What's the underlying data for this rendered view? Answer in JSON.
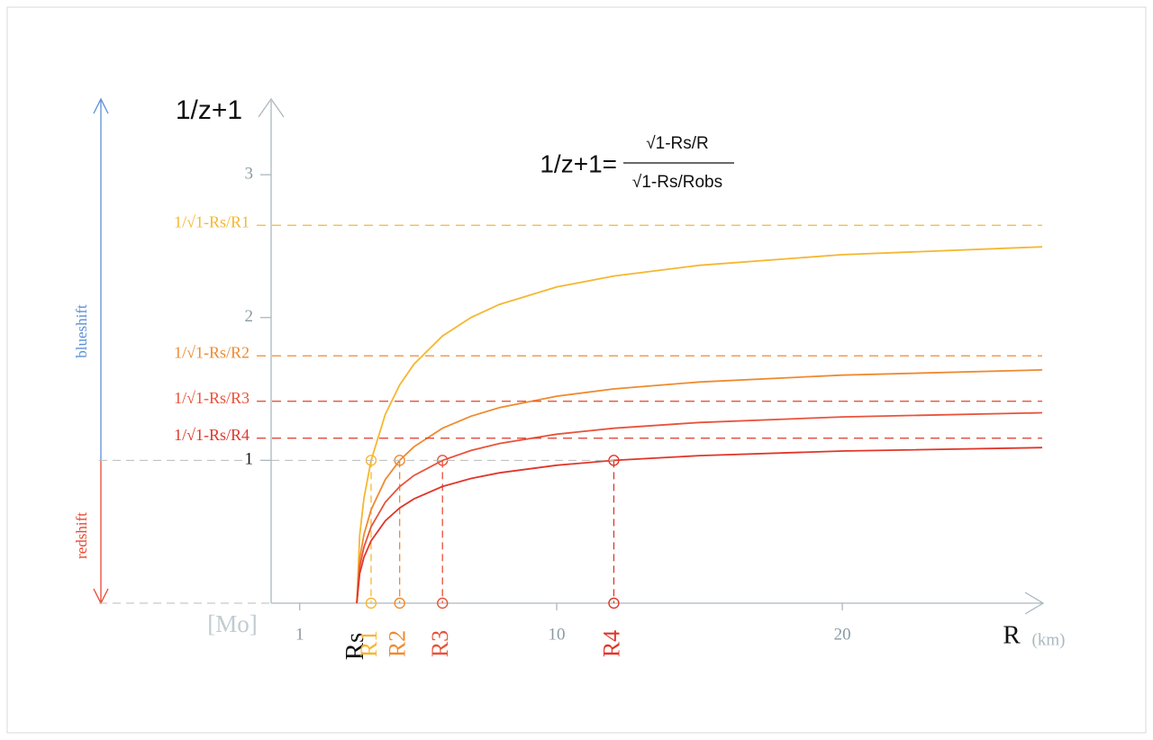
{
  "chart_data": {
    "type": "line",
    "y_label": "1/z+1",
    "formula": {
      "lhs": "1/z+1=",
      "numerator": "√1-Rs/R",
      "denominator": "√1-Rs/Robs"
    },
    "x_label": "R",
    "x_unit": "(km)",
    "x_prefix": "[Mo]",
    "shift_labels": {
      "blue": "blueshift",
      "red": "redshift"
    },
    "rs": {
      "label": "Rs",
      "value": 3
    },
    "xlim": [
      0,
      27
    ],
    "ylim": [
      0,
      3.53
    ],
    "xticks": [
      1,
      10,
      20
    ],
    "yticks": [
      1,
      2,
      3
    ],
    "x": [
      3,
      3.1,
      3.25,
      3.5,
      4,
      4.5,
      5,
      6,
      7,
      8,
      10,
      12,
      15,
      20,
      27
    ],
    "series": [
      {
        "name": "R1",
        "color": "#f5b731",
        "radius": 3.5,
        "asymptote": 2.646,
        "asymptote_label": "1/√1-Rs/R1",
        "values": [
          0,
          0.475,
          0.734,
          1.0,
          1.323,
          1.528,
          1.673,
          1.871,
          2.0,
          2.092,
          2.214,
          2.291,
          2.366,
          2.44,
          2.495
        ]
      },
      {
        "name": "R2",
        "color": "#ef8a30",
        "radius": 4.5,
        "asymptote": 1.732,
        "asymptote_label": "1/√1-Rs/R2",
        "values": [
          0,
          0.311,
          0.48,
          0.655,
          0.866,
          1.0,
          1.095,
          1.225,
          1.309,
          1.369,
          1.449,
          1.5,
          1.549,
          1.597,
          1.633
        ]
      },
      {
        "name": "R3",
        "color": "#e8533a",
        "radius": 6,
        "asymptote": 1.414,
        "asymptote_label": "1/√1-Rs/R3",
        "values": [
          0,
          0.254,
          0.392,
          0.535,
          0.707,
          0.816,
          0.894,
          1.0,
          1.069,
          1.118,
          1.183,
          1.225,
          1.265,
          1.304,
          1.333
        ]
      },
      {
        "name": "R4",
        "color": "#e0362a",
        "radius": 12,
        "asymptote": 1.155,
        "asymptote_label": "1/√1-Rs/R4",
        "values": [
          0,
          0.207,
          0.32,
          0.437,
          0.577,
          0.667,
          0.73,
          0.817,
          0.873,
          0.913,
          0.966,
          1.0,
          1.033,
          1.065,
          1.089
        ]
      }
    ]
  }
}
